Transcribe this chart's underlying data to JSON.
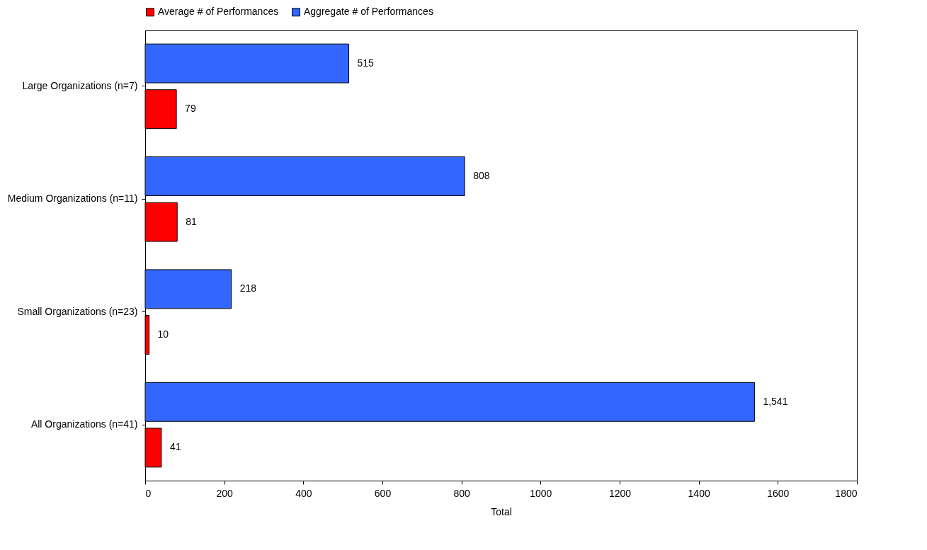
{
  "chart_data": {
    "type": "bar",
    "orientation": "horizontal",
    "categories": [
      "Large Organizations (n=7)",
      "Medium Organizations (n=11)",
      "Small Organizations (n=23)",
      "All Organizations (n=41)"
    ],
    "series": [
      {
        "name": "Average # of Performances",
        "color": "#ff0000",
        "values": [
          79,
          81,
          10,
          41
        ],
        "value_labels": [
          "79",
          "81",
          "10",
          "41"
        ]
      },
      {
        "name": "Aggregate # of Performances",
        "color": "#3366ff",
        "values": [
          515,
          808,
          218,
          1541
        ],
        "value_labels": [
          "515",
          "808",
          "218",
          "1,541"
        ]
      }
    ],
    "xlabel": "Total",
    "xlim": [
      0,
      1800
    ],
    "xticks": [
      0,
      200,
      400,
      600,
      800,
      1000,
      1200,
      1400,
      1600,
      1800
    ],
    "grid": false,
    "legend": "top"
  }
}
